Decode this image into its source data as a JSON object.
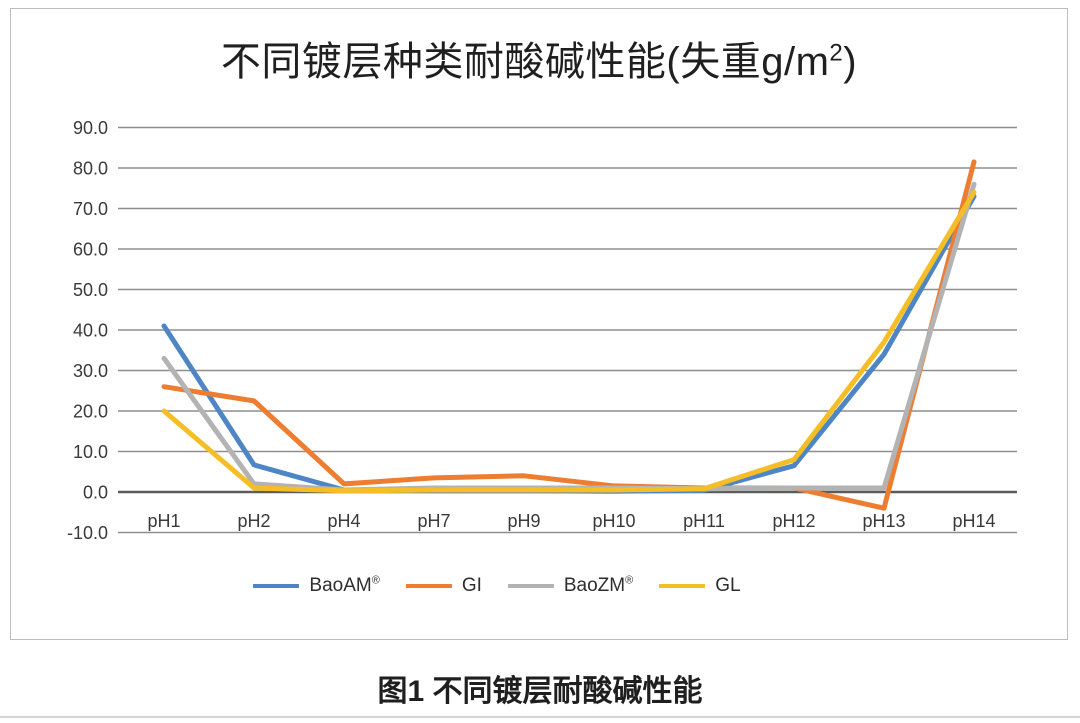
{
  "page": {
    "caption": "图1 不同镀层耐酸碱性能"
  },
  "chart": {
    "title_prefix": "不同镀层种类耐酸碱性能(失重g/m",
    "title_sup": "2",
    "title_suffix": ")"
  },
  "chart_data": {
    "type": "line",
    "title": "不同镀层种类耐酸碱性能(失重g/m²)",
    "xlabel": "",
    "ylabel": "",
    "categories": [
      "pH1",
      "pH2",
      "pH4",
      "pH7",
      "pH9",
      "pH10",
      "pH11",
      "pH12",
      "pH13",
      "pH14"
    ],
    "series": [
      {
        "name": "BaoAM",
        "name_sup": "®",
        "color": "#4E86C5",
        "values": [
          41.0,
          6.7,
          0.5,
          0.3,
          0.3,
          0.2,
          0.4,
          6.5,
          34.0,
          73.0
        ]
      },
      {
        "name": "GI",
        "name_sup": "",
        "color": "#ED7D31",
        "values": [
          26.0,
          22.5,
          2.0,
          3.5,
          4.0,
          1.5,
          1.0,
          1.0,
          -4.0,
          81.5
        ]
      },
      {
        "name": "BaoZM",
        "name_sup": "®",
        "color": "#B3B3B3",
        "values": [
          33.0,
          2.0,
          0.5,
          1.0,
          1.0,
          1.0,
          0.8,
          1.0,
          1.0,
          76.0
        ]
      },
      {
        "name": "GL",
        "name_sup": "",
        "color": "#F5BD26",
        "values": [
          20.0,
          1.0,
          0.3,
          0.5,
          0.5,
          0.5,
          0.8,
          8.0,
          37.0,
          74.0
        ]
      }
    ],
    "ylim": [
      -10,
      90
    ],
    "ytick_step": 10,
    "ytick_decimals": 1,
    "grid": true,
    "zero_line_emphasized": true,
    "legend_position": "bottom",
    "axis_text_color": "#3a3a3a",
    "gridline_color": "#8e8e8e",
    "zero_line_color": "#5c5c5c"
  }
}
